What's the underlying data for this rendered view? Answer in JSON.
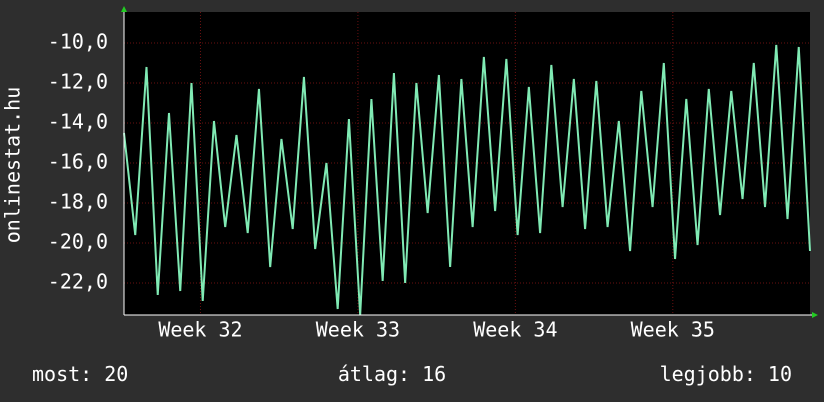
{
  "chart_data": {
    "type": "line",
    "y_label": "onlinestat.hu",
    "x": [
      0,
      0.5,
      1,
      1.5,
      2,
      2.5,
      3,
      3.5,
      4,
      4.5,
      5,
      5.5,
      6,
      6.5,
      7,
      7.5,
      8,
      8.5,
      9,
      9.5,
      10,
      10.5,
      11,
      11.5,
      12,
      12.5,
      13,
      13.5,
      14,
      14.5,
      15,
      15.5,
      16,
      16.5,
      17,
      17.5,
      18,
      18.5,
      19,
      19.5,
      20,
      20.5,
      21,
      21.5,
      22,
      22.5,
      23,
      23.5,
      24,
      24.5,
      25,
      25.5,
      26,
      26.5,
      27,
      27.5,
      28,
      28.5,
      29,
      29.5,
      30,
      30.5
    ],
    "series": [
      {
        "color": "#80eab4",
        "values": [
          -14.5,
          -19.6,
          -11.2,
          -22.6,
          -13.5,
          -22.4,
          -12.0,
          -22.9,
          -13.9,
          -19.2,
          -14.6,
          -19.5,
          -12.3,
          -21.2,
          -14.8,
          -19.3,
          -11.7,
          -20.3,
          -16.0,
          -23.3,
          -13.8,
          -23.6,
          -12.8,
          -21.9,
          -11.5,
          -22.0,
          -12.0,
          -18.5,
          -11.6,
          -21.2,
          -11.8,
          -19.2,
          -10.7,
          -18.4,
          -10.8,
          -19.6,
          -12.2,
          -19.5,
          -11.1,
          -18.2,
          -11.8,
          -19.3,
          -11.9,
          -19.2,
          -13.9,
          -20.4,
          -12.4,
          -18.2,
          -11.0,
          -20.8,
          -12.8,
          -20.1,
          -12.3,
          -18.6,
          -12.4,
          -17.8,
          -11.0,
          -18.2,
          -10.1,
          -18.8,
          -10.2,
          -20.4
        ]
      }
    ],
    "xlim": [
      0,
      30.5
    ],
    "xticks": [
      {
        "value": 3.4,
        "label": "Week 32"
      },
      {
        "value": 10.4,
        "label": "Week 33"
      },
      {
        "value": 17.4,
        "label": "Week 34"
      },
      {
        "value": 24.4,
        "label": "Week 35"
      }
    ],
    "ylim": [
      -23.6,
      -8.45
    ],
    "yticks": [
      {
        "value": -10,
        "label": "-10,0"
      },
      {
        "value": -12,
        "label": "-12,0"
      },
      {
        "value": -14,
        "label": "-14,0"
      },
      {
        "value": -16,
        "label": "-16,0"
      },
      {
        "value": -18,
        "label": "-18,0"
      },
      {
        "value": -20,
        "label": "-20,0"
      },
      {
        "value": -22,
        "label": "-22,0"
      }
    ],
    "grid": true,
    "stats": [
      {
        "label": "most:",
        "value": 20
      },
      {
        "label": "átlag:",
        "value": 16
      },
      {
        "label": "legjobb:",
        "value": 10
      }
    ]
  }
}
